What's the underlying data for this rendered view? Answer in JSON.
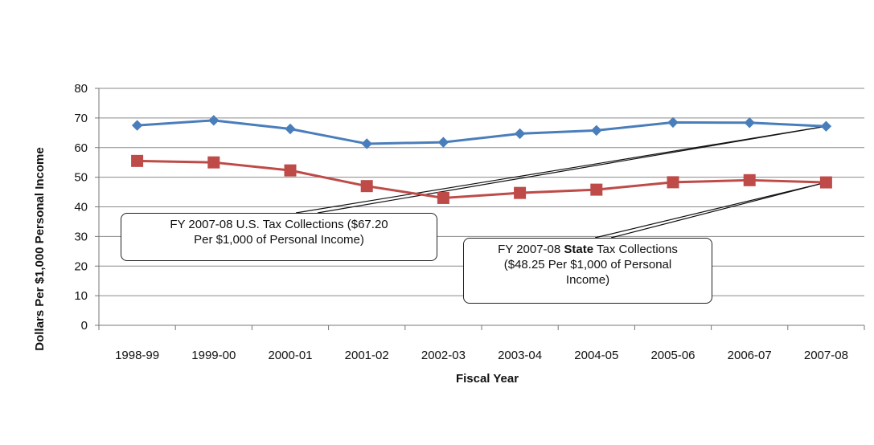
{
  "chart_data": {
    "type": "line",
    "xlabel": "Fiscal Year",
    "ylabel": "Dollars Per $1,000 Personal Income",
    "ylim": [
      0,
      80
    ],
    "yticks": [
      0,
      10,
      20,
      30,
      40,
      50,
      60,
      70,
      80
    ],
    "grid": true,
    "categories": [
      "1998-99",
      "1999-00",
      "2000-01",
      "2001-02",
      "2002-03",
      "2003-04",
      "2004-05",
      "2005-06",
      "2006-07",
      "2007-08"
    ],
    "series": [
      {
        "color": "#4a7ebb",
        "marker": "diamond",
        "values": [
          67.5,
          69.2,
          66.3,
          61.3,
          61.8,
          64.7,
          65.8,
          68.5,
          68.4,
          67.2
        ]
      },
      {
        "color": "#be4b48",
        "marker": "square",
        "values": [
          55.5,
          55.0,
          52.3,
          47.0,
          43.0,
          44.7,
          45.8,
          48.3,
          49.0,
          48.25
        ]
      }
    ],
    "annotations": [
      {
        "line1": "FY 2007-08 U.S. Tax Collections ($67.20",
        "line2": "Per $1,000 of Personal Income)"
      },
      {
        "line1_pre": "FY 2007-08 ",
        "line1_bold": "State",
        "line1_post": " Tax Collections",
        "line2": "($48.25 Per $1,000 of Personal",
        "line3": "Income)"
      }
    ]
  }
}
